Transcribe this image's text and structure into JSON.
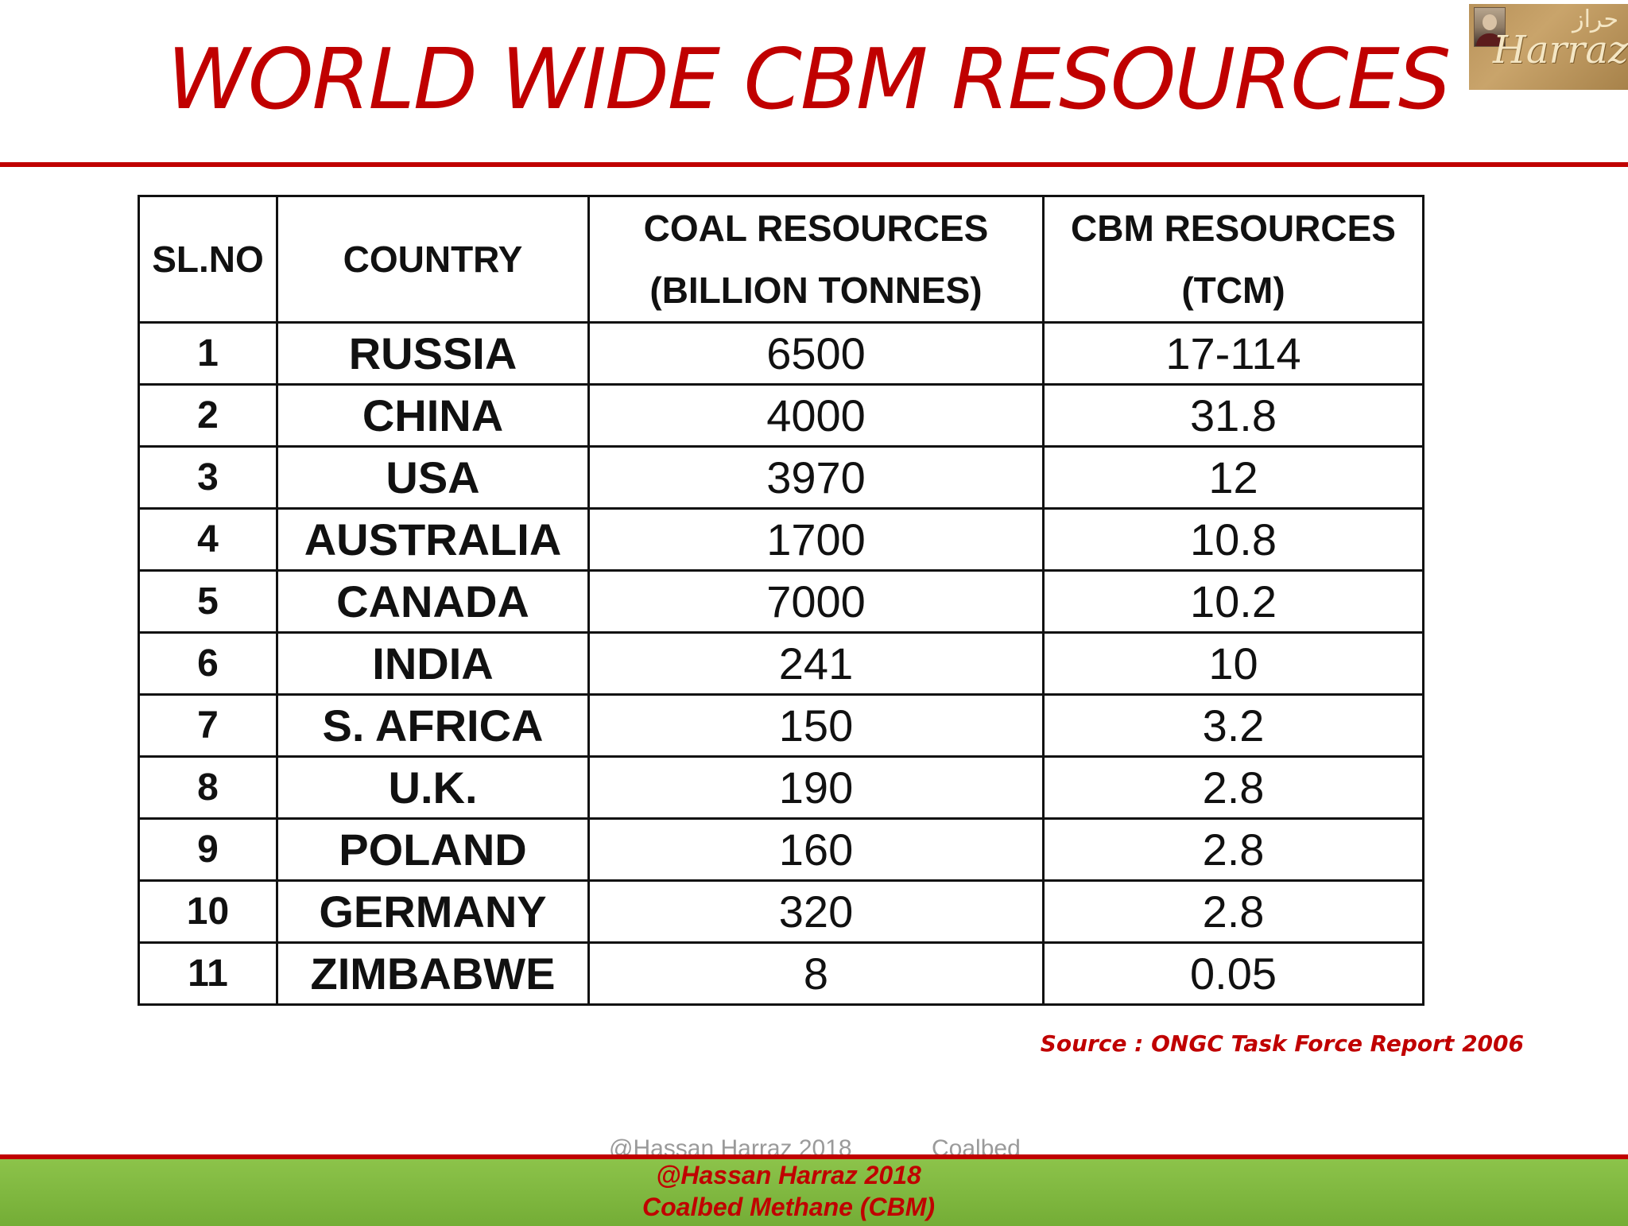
{
  "title": "WORLD WIDE CBM RESOURCES",
  "logo": {
    "text": "Harraz",
    "arabic": "حراز"
  },
  "table": {
    "headers": {
      "sl": "SL.NO",
      "country": "COUNTRY",
      "coal_line1": "COAL RESOURCES",
      "coal_line2": "(BILLION TONNES)",
      "cbm_line1": "CBM RESOURCES",
      "cbm_line2": "(TCM)"
    },
    "rows": [
      {
        "sl": "1",
        "country": "RUSSIA",
        "coal": "6500",
        "cbm": "17-114"
      },
      {
        "sl": "2",
        "country": "CHINA",
        "coal": "4000",
        "cbm": "31.8"
      },
      {
        "sl": "3",
        "country": "USA",
        "coal": "3970",
        "cbm": "12"
      },
      {
        "sl": "4",
        "country": "AUSTRALIA",
        "coal": "1700",
        "cbm": "10.8"
      },
      {
        "sl": "5",
        "country": "CANADA",
        "coal": "7000",
        "cbm": "10.2"
      },
      {
        "sl": "6",
        "country": "INDIA",
        "coal": "241",
        "cbm": "10"
      },
      {
        "sl": "7",
        "country": "S. AFRICA",
        "coal": "150",
        "cbm": "3.2"
      },
      {
        "sl": "8",
        "country": "U.K.",
        "coal": "190",
        "cbm": "2.8"
      },
      {
        "sl": "9",
        "country": "POLAND",
        "coal": "160",
        "cbm": "2.8"
      },
      {
        "sl": "10",
        "country": "GERMANY",
        "coal": "320",
        "cbm": "2.8"
      },
      {
        "sl": "11",
        "country": "ZIMBABWE",
        "coal": "8",
        "cbm": "0.05"
      }
    ]
  },
  "source": "Source : ONGC Task Force Report 2006",
  "ghost_footer": {
    "left": "@Hassan Harraz 2018",
    "right": "Coalbed"
  },
  "footer": {
    "line1": "@Hassan Harraz 2018",
    "line2": "Coalbed Methane (CBM)"
  }
}
